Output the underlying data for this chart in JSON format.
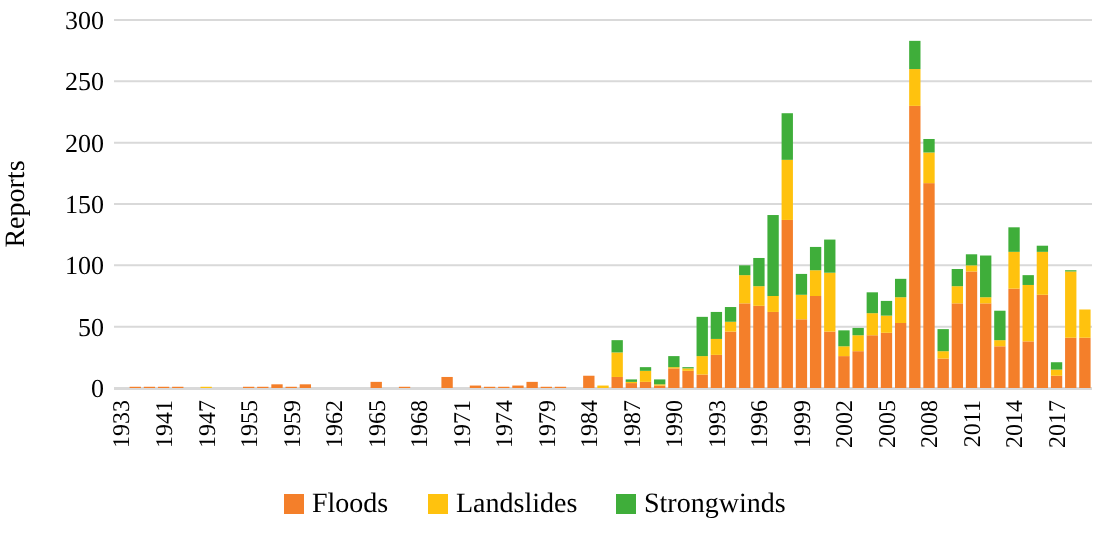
{
  "chart_data": {
    "type": "bar",
    "stacked": true,
    "ylabel": "Reports",
    "ylim": [
      0,
      300
    ],
    "yticks": [
      0,
      50,
      100,
      150,
      200,
      250,
      300
    ],
    "grid": "y",
    "legend": "bottom",
    "categories": [
      "1933",
      null,
      null,
      "1941",
      null,
      null,
      "1947",
      null,
      null,
      "1955",
      null,
      null,
      "1959",
      null,
      null,
      "1962",
      null,
      null,
      "1965",
      null,
      null,
      "1968",
      null,
      null,
      "1971",
      null,
      null,
      "1974",
      null,
      null,
      "1979",
      null,
      null,
      "1984",
      null,
      null,
      "1987",
      null,
      null,
      "1990",
      null,
      null,
      "1993",
      null,
      null,
      "1996",
      null,
      null,
      "1999",
      null,
      null,
      "2002",
      null,
      null,
      "2005",
      null,
      null,
      "2008",
      null,
      null,
      "2011",
      null,
      null,
      "2014",
      null,
      null,
      "2017",
      null,
      null
    ],
    "series": [
      {
        "name": "Floods",
        "color": "#f47f2a",
        "values": [
          0,
          1,
          1,
          1,
          1,
          0,
          0,
          0,
          0,
          1,
          1,
          3,
          1,
          3,
          0,
          0,
          0,
          0,
          5,
          0,
          1,
          0,
          0,
          9,
          0,
          2,
          1,
          1,
          2,
          5,
          1,
          1,
          0,
          10,
          0,
          9,
          4,
          5,
          2,
          16,
          14,
          11,
          27,
          46,
          69,
          67,
          62,
          137,
          56,
          75,
          46,
          26,
          30,
          43,
          45,
          53,
          230,
          167,
          24,
          69,
          95,
          69,
          34,
          81,
          38,
          76,
          10,
          41,
          41
        ]
      },
      {
        "name": "Landslides",
        "color": "#ffc20e",
        "values": [
          0,
          0,
          0,
          0,
          0,
          0,
          1,
          0,
          0,
          0,
          0,
          0,
          0,
          0,
          0,
          0,
          0,
          0,
          0,
          0,
          0,
          0,
          0,
          0,
          0,
          0,
          0,
          0,
          0,
          0,
          0,
          0,
          0,
          0,
          2,
          20,
          1,
          9,
          1,
          1,
          2,
          15,
          13,
          8,
          23,
          16,
          13,
          49,
          20,
          21,
          48,
          8,
          13,
          18,
          14,
          21,
          30,
          25,
          6,
          14,
          5,
          5,
          5,
          30,
          46,
          35,
          5,
          54,
          23
        ]
      },
      {
        "name": "Strongwinds",
        "color": "#3fae3a",
        "values": [
          0,
          0,
          0,
          0,
          0,
          0,
          0,
          0,
          0,
          0,
          0,
          0,
          0,
          0,
          0,
          0,
          0,
          0,
          0,
          0,
          0,
          0,
          0,
          0,
          0,
          0,
          0,
          0,
          0,
          0,
          0,
          0,
          0,
          0,
          0,
          10,
          2,
          3,
          4,
          9,
          1,
          32,
          22,
          12,
          8,
          23,
          66,
          38,
          17,
          19,
          27,
          13,
          6,
          17,
          12,
          15,
          23,
          11,
          18,
          14,
          9,
          34,
          24,
          20,
          8,
          5,
          6,
          1,
          0
        ]
      }
    ]
  }
}
